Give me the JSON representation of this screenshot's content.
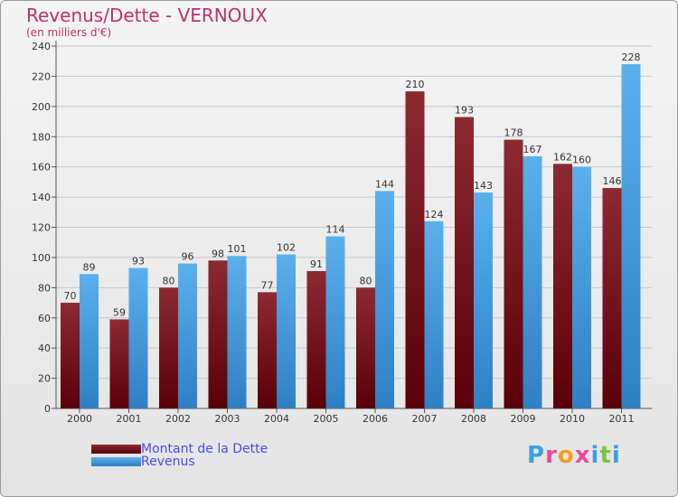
{
  "chart_data": {
    "type": "bar",
    "title": "Revenus/Dette - VERNOUX",
    "subtitle": "(en milliers d'€)",
    "xlabel": "",
    "ylabel": "",
    "ylim": [
      0,
      240
    ],
    "yticks": [
      0,
      20,
      40,
      60,
      80,
      100,
      120,
      140,
      160,
      180,
      200,
      220,
      240
    ],
    "categories": [
      "2000",
      "2001",
      "2002",
      "2003",
      "2004",
      "2005",
      "2006",
      "2007",
      "2008",
      "2009",
      "2010",
      "2011"
    ],
    "series": [
      {
        "name": "Montant de la Dette",
        "color": "#7a1a22",
        "values": [
          70,
          59,
          80,
          98,
          77,
          91,
          80,
          210,
          193,
          178,
          162,
          146
        ]
      },
      {
        "name": "Revenus",
        "color": "#4aa3e3",
        "values": [
          89,
          93,
          96,
          101,
          102,
          114,
          144,
          124,
          143,
          167,
          160,
          228
        ]
      }
    ],
    "grid": true,
    "legend_position": "bottom-left"
  },
  "brand": {
    "letters": [
      "P",
      "r",
      "o",
      "x",
      "i",
      "t",
      "i"
    ],
    "colors": [
      "#3aa0e0",
      "#e84b9a",
      "#f0a020",
      "#e84b9a",
      "#3aa0e0",
      "#7cc440",
      "#3aa0e0"
    ]
  }
}
